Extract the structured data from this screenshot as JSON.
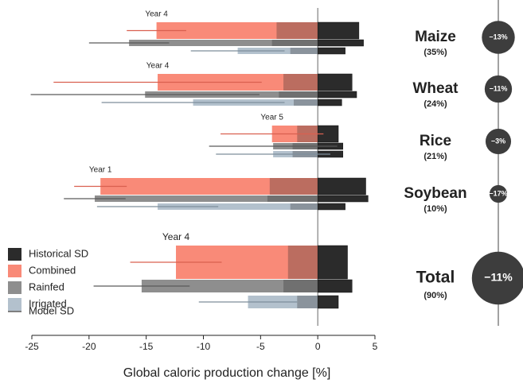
{
  "chart_data": {
    "type": "bar",
    "xlabel": "Global caloric production change [%]",
    "xlim": [
      -25,
      5
    ],
    "xticks": [
      -25,
      -20,
      -15,
      -10,
      -5,
      0,
      5
    ],
    "series": [
      {
        "name": "Combined",
        "color": "#f98a78"
      },
      {
        "name": "Rainfed",
        "color": "#8e8e8e"
      },
      {
        "name": "Irrigated",
        "color": "#b3c1cd"
      }
    ],
    "historical_sd": {
      "name": "Historical SD",
      "color": "#2b2b2b"
    },
    "model_sd": {
      "name": "Model SD",
      "color": "#555555"
    },
    "groups": [
      {
        "name": "Maize",
        "year_label": "Year 4",
        "share": 35,
        "share_label": "(35%)",
        "change": -13,
        "change_label": "−13%",
        "means": [
          -14.1,
          -16.5,
          -7.0
        ],
        "model_sd_values": [
          2.6,
          3.5,
          4.1
        ],
        "historical_sd_values": [
          3.6,
          4.0,
          2.4
        ]
      },
      {
        "name": "Wheat",
        "year_label": "Year 4",
        "share": 24,
        "share_label": "(24%)",
        "change": -11,
        "change_label": "−11%",
        "means": [
          -14.0,
          -15.1,
          -10.9
        ],
        "model_sd_values": [
          9.1,
          10.0,
          8.0
        ],
        "historical_sd_values": [
          3.0,
          3.4,
          2.1
        ]
      },
      {
        "name": "Rice",
        "year_label": "Year 5",
        "share": 21,
        "share_label": "(21%)",
        "change": -3,
        "change_label": "−3%",
        "means": [
          -4.0,
          -3.9,
          -3.9
        ],
        "model_sd_values": [
          4.5,
          5.6,
          5.0
        ],
        "historical_sd_values": [
          1.8,
          2.2,
          2.2
        ]
      },
      {
        "name": "Soybean",
        "year_label": "Year 1",
        "share": 10,
        "share_label": "(10%)",
        "change": -17,
        "change_label": "−17%",
        "means": [
          -19.0,
          -19.5,
          -14.0
        ],
        "model_sd_values": [
          2.3,
          2.7,
          5.3
        ],
        "historical_sd_values": [
          4.2,
          4.4,
          2.4
        ]
      },
      {
        "name": "Total",
        "year_label": "Year 4",
        "share": 90,
        "share_label": "(90%)",
        "change": -11,
        "change_label": "−11%",
        "means": [
          -12.4,
          -15.4,
          -6.1
        ],
        "model_sd_values": [
          4.0,
          4.2,
          4.3
        ],
        "historical_sd_values": [
          2.6,
          3.0,
          1.8
        ]
      }
    ]
  }
}
